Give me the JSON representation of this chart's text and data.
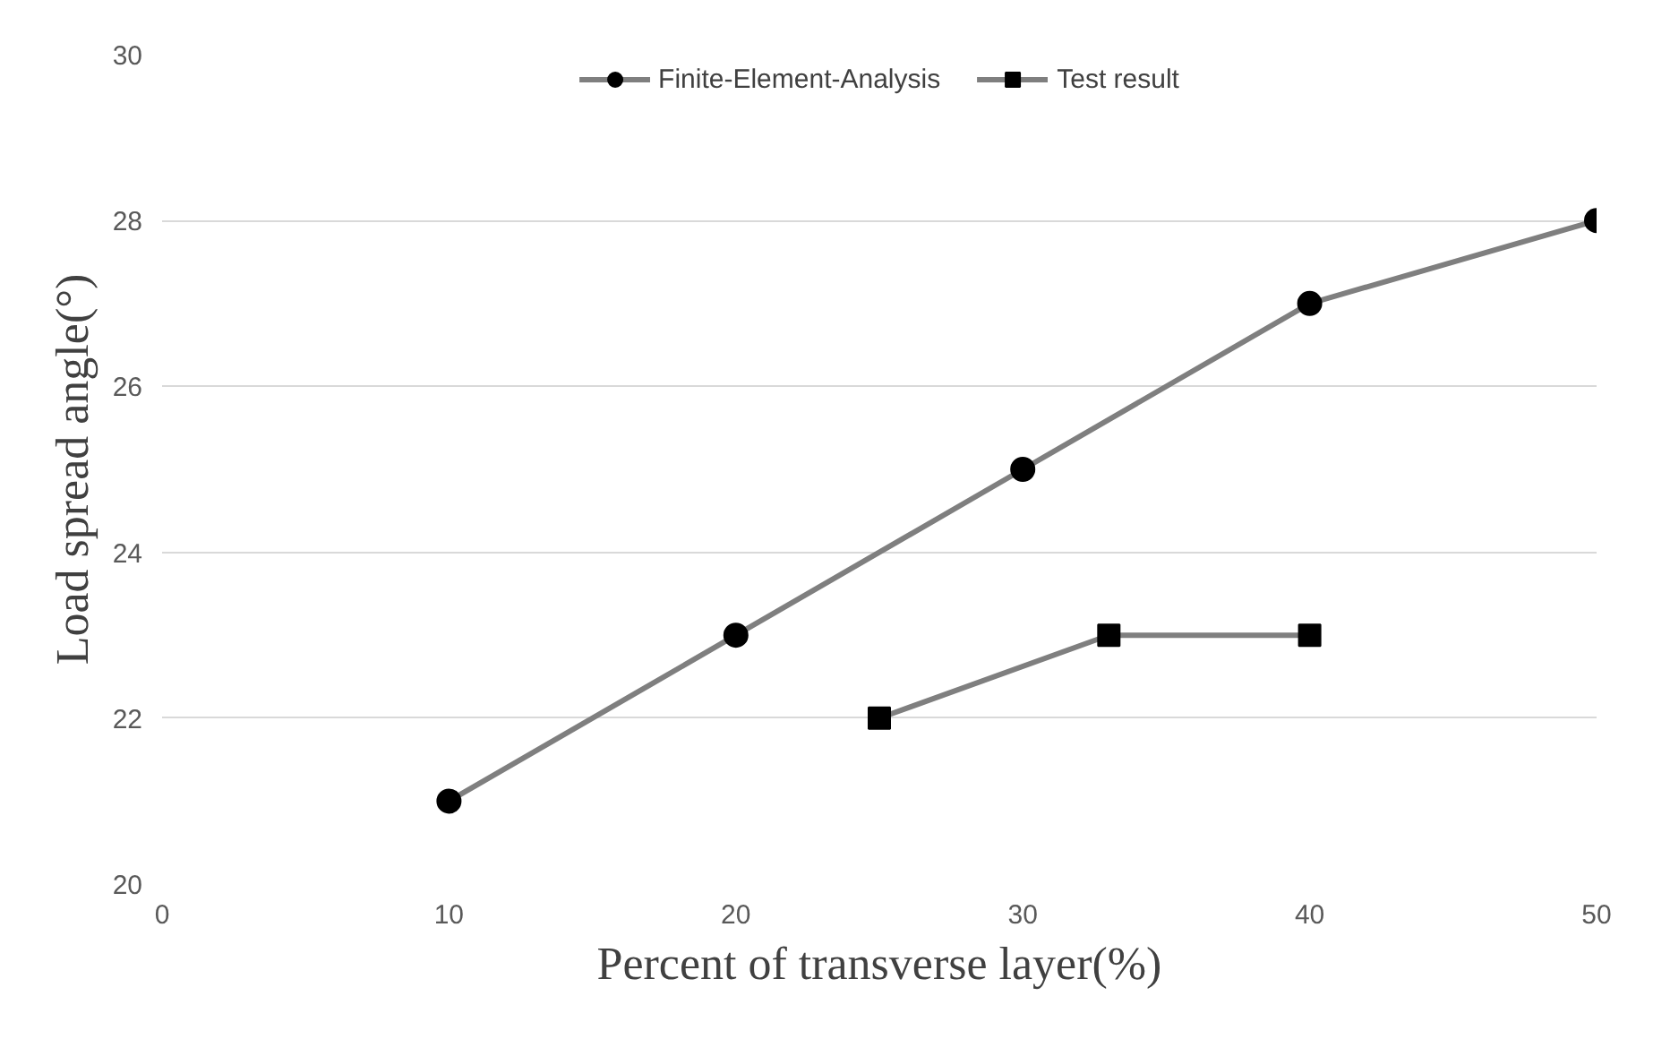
{
  "chart_data": {
    "type": "line",
    "xlabel": "Percent of transverse layer(%)",
    "ylabel": "Load spread angle(°)",
    "xlim": [
      0,
      50
    ],
    "xticks": [
      0,
      10,
      20,
      30,
      40,
      50
    ],
    "ylim": [
      20,
      30
    ],
    "yticks": [
      20,
      22,
      24,
      26,
      28,
      30
    ],
    "grid": "y",
    "legend": "top",
    "series": [
      {
        "name": "Finite-Element-Analysis",
        "color": "#7f7f7f",
        "marker": "circle",
        "x": [
          10,
          20,
          30,
          40,
          50
        ],
        "values": [
          21,
          23,
          25,
          27,
          28
        ]
      },
      {
        "name": "Test result",
        "color": "#7f7f7f",
        "marker": "square",
        "x": [
          25,
          33,
          40
        ],
        "values": [
          22,
          23,
          23
        ]
      }
    ]
  }
}
